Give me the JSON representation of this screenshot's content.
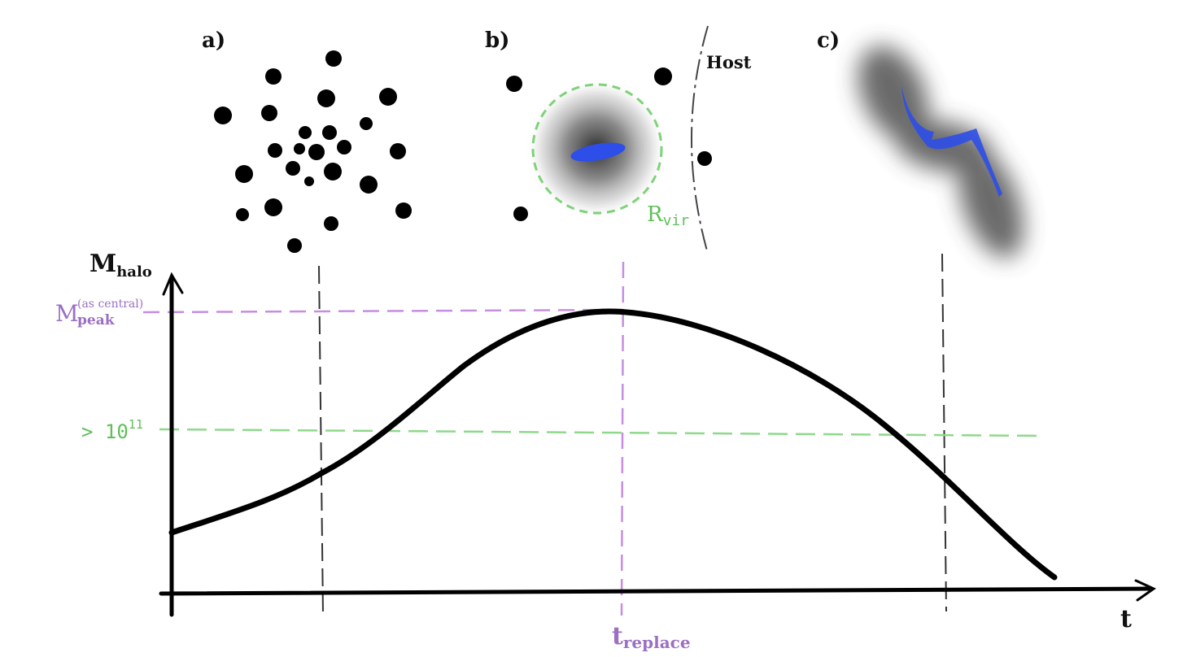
{
  "panels": {
    "a": {
      "label": "a)"
    },
    "b": {
      "label": "b)",
      "host_label": "Host",
      "rvir_main": "R",
      "rvir_sub": "vir"
    },
    "c": {
      "label": "c)"
    }
  },
  "axes": {
    "y_label_main": "M",
    "y_label_sub": "halo",
    "x_label": "t"
  },
  "levels": {
    "peak_main": "M",
    "peak_sup": "(as central)",
    "peak_sub": "peak",
    "threshold_prefix": "> 10",
    "threshold_exp": "11"
  },
  "times": {
    "replace_main": "t",
    "replace_sub": "replace"
  },
  "colors": {
    "curve": "#000000",
    "peak_line": "#c58ee0",
    "peak_text": "#9b6fc2",
    "threshold_line": "#8ed98a",
    "threshold_text": "#5fbf5a",
    "galaxy": "#2d4ee8",
    "guide": "#333333"
  }
}
